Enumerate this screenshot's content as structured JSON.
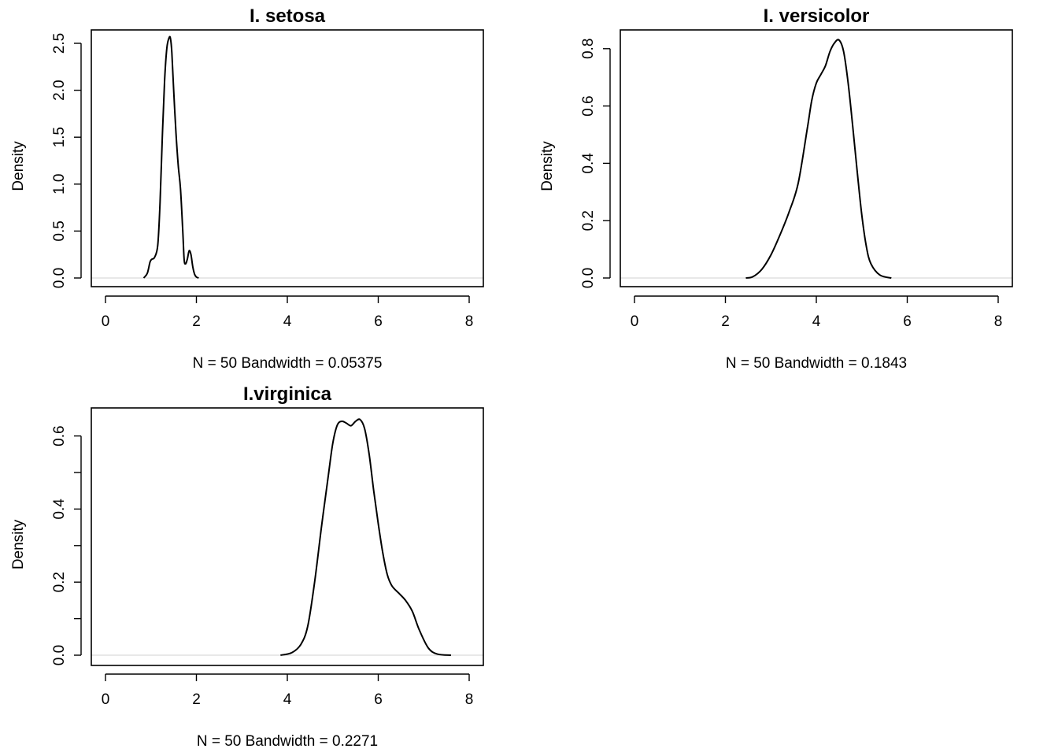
{
  "chart_data": [
    {
      "type": "line",
      "title": "I. setosa",
      "xlabel": "N = 50   Bandwidth = 0.05375",
      "ylabel": "Density",
      "xlim": [
        0,
        8
      ],
      "ylim": [
        0,
        2.6
      ],
      "xticks": [
        0,
        2,
        4,
        6,
        8
      ],
      "xtick_labels": [
        "0",
        "2",
        "4",
        "6",
        "8"
      ],
      "yticks": [
        0,
        0.5,
        1,
        1.5,
        2,
        2.5
      ],
      "ytick_labels": [
        "0.0",
        "0.5",
        "1.0",
        "1.5",
        "2.0",
        "2.5"
      ],
      "grid": false,
      "x": [
        0.84,
        0.92,
        0.98,
        1.02,
        1.08,
        1.15,
        1.2,
        1.25,
        1.3,
        1.35,
        1.4,
        1.43,
        1.46,
        1.5,
        1.55,
        1.6,
        1.65,
        1.7,
        1.73,
        1.76,
        1.8,
        1.84,
        1.88,
        1.92,
        1.96,
        2.0,
        2.05
      ],
      "y": [
        0.0,
        0.05,
        0.17,
        0.2,
        0.22,
        0.35,
        0.8,
        1.5,
        2.1,
        2.45,
        2.56,
        2.55,
        2.4,
        2.0,
        1.55,
        1.2,
        0.95,
        0.5,
        0.2,
        0.15,
        0.2,
        0.29,
        0.25,
        0.12,
        0.04,
        0.01,
        0.0
      ]
    },
    {
      "type": "line",
      "title": "I. versicolor",
      "xlabel": "N = 50   Bandwidth = 0.1843",
      "ylabel": "Density",
      "xlim": [
        0,
        8
      ],
      "ylim": [
        0,
        0.83
      ],
      "xticks": [
        0,
        2,
        4,
        6,
        8
      ],
      "xtick_labels": [
        "0",
        "2",
        "4",
        "6",
        "8"
      ],
      "yticks": [
        0,
        0.2,
        0.4,
        0.6,
        0.8
      ],
      "ytick_labels": [
        "0.0",
        "0.2",
        "0.4",
        "0.6",
        "0.8"
      ],
      "grid": false,
      "x": [
        2.45,
        2.6,
        2.8,
        3.0,
        3.2,
        3.4,
        3.6,
        3.8,
        3.9,
        4.0,
        4.1,
        4.2,
        4.3,
        4.4,
        4.5,
        4.6,
        4.7,
        4.8,
        4.9,
        5.0,
        5.1,
        5.2,
        5.4,
        5.65
      ],
      "y": [
        0.0,
        0.004,
        0.03,
        0.08,
        0.15,
        0.23,
        0.33,
        0.52,
        0.62,
        0.68,
        0.71,
        0.74,
        0.79,
        0.82,
        0.83,
        0.79,
        0.68,
        0.53,
        0.37,
        0.22,
        0.11,
        0.05,
        0.01,
        0.0
      ]
    },
    {
      "type": "line",
      "title": "I.virginica",
      "xlabel": "N = 50   Bandwidth = 0.2271",
      "ylabel": "Density",
      "xlim": [
        0,
        8
      ],
      "ylim": [
        0,
        0.65
      ],
      "xticks": [
        0,
        2,
        4,
        6,
        8
      ],
      "xtick_labels": [
        "0",
        "2",
        "4",
        "6",
        "8"
      ],
      "yticks": [
        0,
        0.1,
        0.2,
        0.3,
        0.4,
        0.5,
        0.6
      ],
      "ytick_labels": [
        "0.0",
        "",
        "0.2",
        "",
        "0.4",
        "",
        "0.6"
      ],
      "grid": false,
      "x": [
        3.85,
        4.1,
        4.3,
        4.45,
        4.6,
        4.75,
        4.9,
        5.0,
        5.1,
        5.2,
        5.3,
        5.4,
        5.5,
        5.6,
        5.7,
        5.8,
        5.9,
        6.0,
        6.1,
        6.2,
        6.3,
        6.45,
        6.6,
        6.75,
        6.9,
        7.1,
        7.3,
        7.6
      ],
      "y": [
        0.0,
        0.007,
        0.03,
        0.08,
        0.2,
        0.35,
        0.49,
        0.58,
        0.63,
        0.64,
        0.635,
        0.628,
        0.64,
        0.645,
        0.62,
        0.55,
        0.45,
        0.36,
        0.28,
        0.22,
        0.19,
        0.17,
        0.15,
        0.12,
        0.07,
        0.02,
        0.003,
        0.0
      ]
    }
  ]
}
